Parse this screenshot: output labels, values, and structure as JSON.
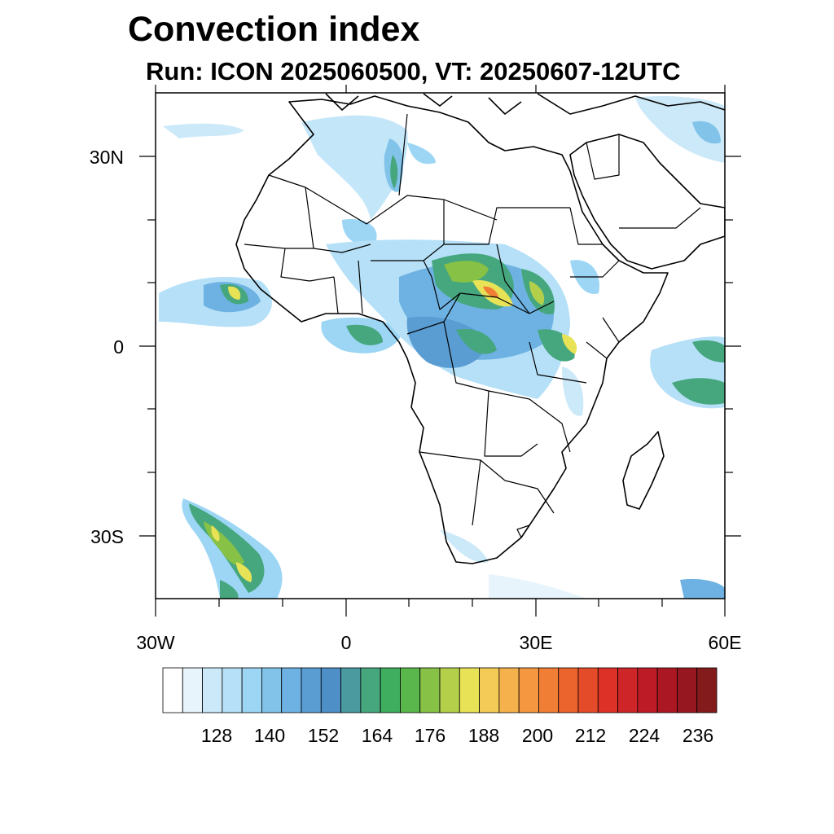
{
  "title": "Convection index",
  "subtitle": "Run: ICON 2025060500,  VT: 20250607-12UTC",
  "map": {
    "region": "Africa",
    "lon_range": [
      -30,
      60
    ],
    "lat_range": [
      -40,
      40
    ],
    "lat_labels": [
      "30N",
      "0",
      "30S"
    ],
    "lat_values": [
      30,
      0,
      -30
    ],
    "lon_labels": [
      "30W",
      "0",
      "30E",
      "60E"
    ],
    "lon_values": [
      -30,
      0,
      30,
      60
    ]
  },
  "colorbar": {
    "labels": [
      "128",
      "140",
      "152",
      "164",
      "176",
      "188",
      "200",
      "212",
      "224",
      "236"
    ],
    "colors": [
      "#ffffff",
      "#e8f4fc",
      "#cce9f9",
      "#b5e0f7",
      "#9dd6f5",
      "#82c3ea",
      "#6db2e2",
      "#5a9dd3",
      "#4d8fc6",
      "#4a9aa0",
      "#46a77f",
      "#3fae5e",
      "#59b74b",
      "#87c146",
      "#b4d04b",
      "#e8e257",
      "#f5cb58",
      "#f5b14c",
      "#f49740",
      "#f17e35",
      "#ec642d",
      "#e44b29",
      "#dd3128",
      "#cd2528",
      "#bd1c26",
      "#ab1723",
      "#961720",
      "#831a1c"
    ]
  }
}
